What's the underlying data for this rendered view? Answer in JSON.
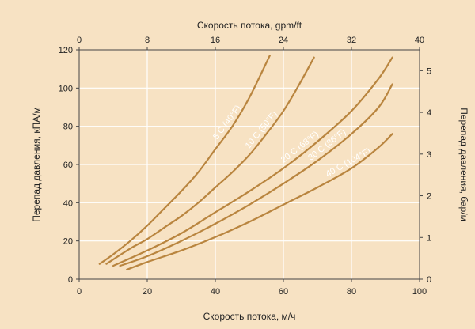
{
  "chart_data": {
    "type": "line",
    "title": "",
    "xlabel": "Скорость потока, м/ч",
    "x2label": "Скорость потока, gpm/ft",
    "ylabel": "Перепад давления, кПА/м",
    "y2label": "Перепад давления, бар/м",
    "xlim": [
      0,
      100
    ],
    "ylim": [
      0,
      120
    ],
    "x2lim": [
      0,
      40
    ],
    "y2lim": [
      0,
      5.5
    ],
    "x_ticks": [
      0,
      20,
      40,
      60,
      80,
      100
    ],
    "y_ticks": [
      0,
      20,
      40,
      60,
      80,
      100,
      120
    ],
    "x2_ticks": [
      0,
      8,
      16,
      24,
      32,
      40
    ],
    "y2_ticks": [
      0,
      1,
      2,
      3,
      4,
      5
    ],
    "grid": true,
    "line_color": "#b9853f",
    "series": [
      {
        "name": "5 C (40°F)",
        "x": [
          6,
          10,
          15,
          20,
          25,
          30,
          35,
          40,
          45,
          50,
          56
        ],
        "y": [
          8,
          13,
          20,
          28,
          37,
          46,
          56,
          68,
          80,
          95,
          117
        ]
      },
      {
        "name": "10 C (50°F)",
        "x": [
          8,
          15,
          20,
          25,
          30,
          35,
          40,
          45,
          50,
          55,
          60,
          65,
          69
        ],
        "y": [
          8,
          16,
          21,
          27,
          33,
          40,
          48,
          56,
          65,
          76,
          88,
          103,
          116
        ]
      },
      {
        "name": "20 C (68°F)",
        "x": [
          10,
          20,
          30,
          40,
          50,
          60,
          70,
          80,
          88,
          92
        ],
        "y": [
          7,
          15,
          24,
          35,
          46,
          58,
          72,
          88,
          105,
          116
        ]
      },
      {
        "name": "30 C (86°F)",
        "x": [
          12,
          20,
          30,
          40,
          50,
          60,
          70,
          80,
          88,
          92
        ],
        "y": [
          7,
          12,
          20,
          29,
          39,
          50,
          62,
          76,
          90,
          102
        ]
      },
      {
        "name": "40 C (104°F)",
        "x": [
          14,
          20,
          30,
          40,
          50,
          60,
          70,
          80,
          88,
          92
        ],
        "y": [
          5,
          9,
          15,
          22,
          30,
          39,
          48,
          58,
          69,
          76
        ]
      }
    ]
  }
}
